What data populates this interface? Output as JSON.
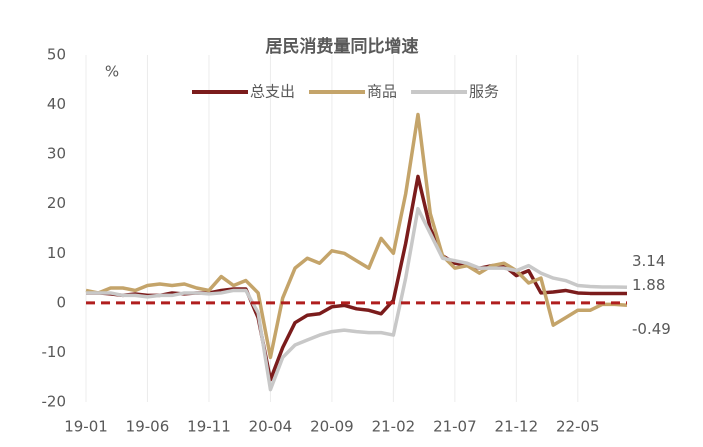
{
  "chart_data": {
    "type": "line",
    "title": "居民消费量同比增速",
    "unit": "%",
    "categories": [
      "19-01",
      null,
      null,
      null,
      null,
      "19-06",
      null,
      null,
      null,
      null,
      "19-11",
      null,
      null,
      null,
      null,
      "20-04",
      null,
      null,
      null,
      null,
      "20-09",
      null,
      null,
      null,
      null,
      "21-02",
      null,
      null,
      null,
      null,
      "21-07",
      null,
      null,
      null,
      null,
      "21-12",
      null,
      null,
      null,
      null,
      "22-05",
      null,
      null,
      null,
      null
    ],
    "series": [
      {
        "name": "总支出",
        "color": "#7b1c1c",
        "values": [
          2,
          2,
          1.8,
          1.5,
          1.8,
          1.5,
          1.5,
          2,
          1.8,
          2,
          2,
          2.5,
          2.8,
          2.8,
          -3,
          -15.5,
          -9,
          -4,
          -2.5,
          -2.2,
          -0.8,
          -0.5,
          -1.2,
          -1.5,
          -2.2,
          0.5,
          12,
          25.5,
          15,
          9.5,
          8,
          7.5,
          7,
          7.5,
          7.5,
          5.5,
          6.5,
          2,
          2.2,
          2.5,
          2,
          1.9,
          1.9,
          1.9,
          1.88
        ]
      },
      {
        "name": "商品",
        "color": "#c4a46a",
        "values": [
          2.5,
          2,
          3,
          3,
          2.5,
          3.5,
          3.8,
          3.5,
          3.8,
          3,
          2.5,
          5.3,
          3.5,
          4.5,
          2,
          -11,
          1,
          7,
          9,
          8,
          10.5,
          10,
          8.5,
          7,
          13,
          10,
          22,
          38,
          18,
          9.5,
          7,
          7.5,
          6,
          7.5,
          8,
          6.5,
          4,
          5,
          -4.5,
          -3,
          -1.5,
          -1.5,
          -0.3,
          -0.3,
          -0.49
        ]
      },
      {
        "name": "服务",
        "color": "#c8c8c8",
        "values": [
          2,
          2,
          2,
          1.5,
          1.5,
          1.2,
          1.5,
          1.5,
          2,
          2,
          1.8,
          2,
          2.5,
          2.5,
          -2,
          -17.5,
          -11,
          -8.5,
          -7.5,
          -6.5,
          -5.8,
          -5.5,
          -5.8,
          -6,
          -6,
          -6.5,
          5,
          19,
          14,
          9,
          8.5,
          8,
          7,
          7,
          7,
          6.5,
          7.5,
          6,
          5,
          4.5,
          3.5,
          3.3,
          3.2,
          3.2,
          3.14
        ]
      }
    ],
    "reference_line": {
      "value": 0,
      "color": "#b01e1e"
    },
    "ylim": [
      -20,
      50
    ],
    "yticks": [
      -20,
      -10,
      0,
      10,
      20,
      30,
      40,
      50
    ],
    "grid": true
  }
}
